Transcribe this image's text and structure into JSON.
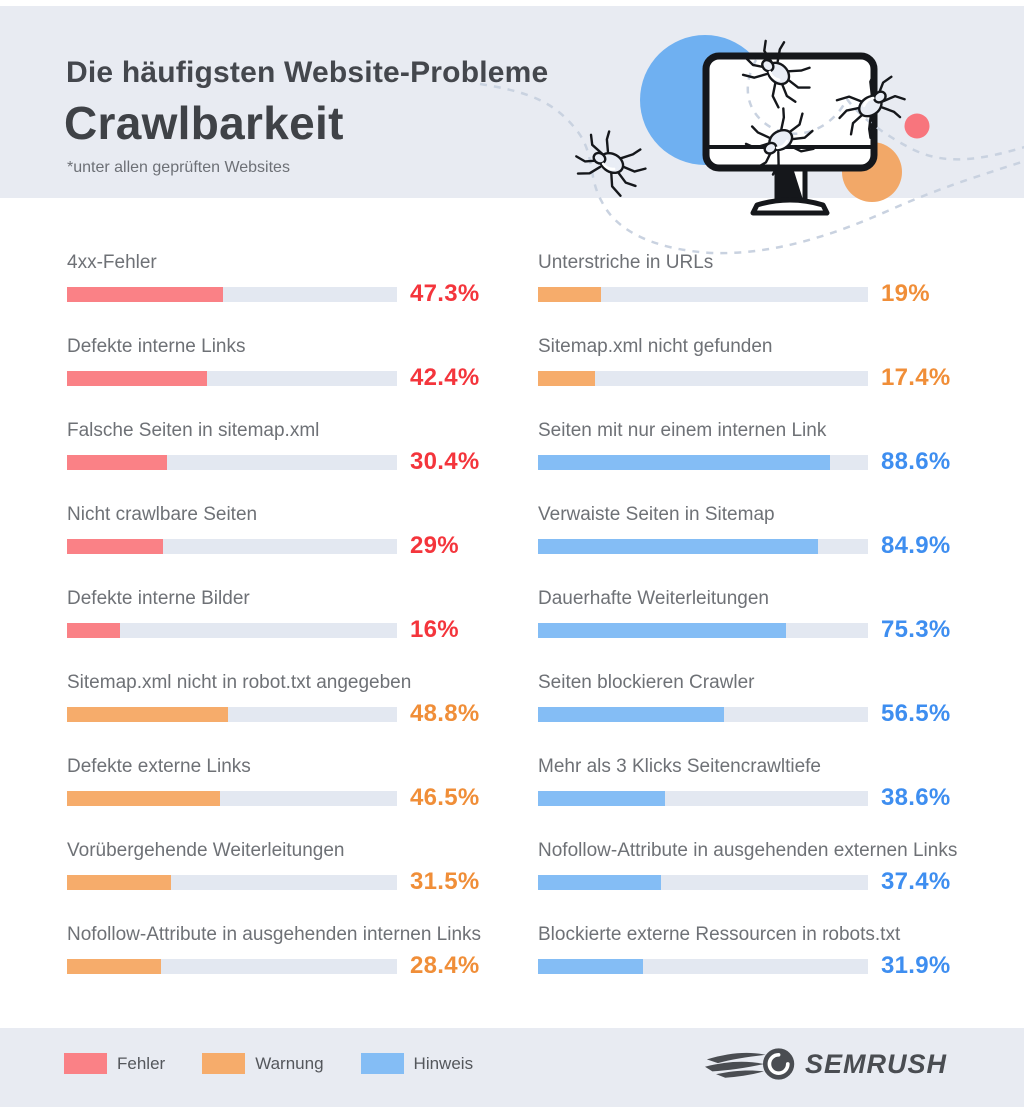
{
  "header": {
    "title_line1": "Die häufigsten Website-Probleme",
    "title_line2": "Crawlbarkeit",
    "subtitle": "*unter allen geprüften Websites"
  },
  "chart_data": {
    "type": "bar",
    "orientation": "horizontal",
    "unit": "%",
    "axis_max": 100,
    "track_color": "#E3E8F1",
    "severity_styles": {
      "fehler": {
        "bar": "#FA8186",
        "value": "#F4353C"
      },
      "warnung": {
        "bar": "#F6AC6B",
        "value": "#F08E38"
      },
      "hinweis": {
        "bar": "#84BDF5",
        "value": "#3E8EF0"
      }
    },
    "columns": [
      {
        "items": [
          {
            "label": "4xx-Fehler",
            "value": 47.3,
            "display": "47.3%",
            "severity": "fehler"
          },
          {
            "label": "Defekte interne Links",
            "value": 42.4,
            "display": "42.4%",
            "severity": "fehler"
          },
          {
            "label": "Falsche Seiten in sitemap.xml",
            "value": 30.4,
            "display": "30.4%",
            "severity": "fehler"
          },
          {
            "label": "Nicht crawlbare Seiten",
            "value": 29,
            "display": "29%",
            "severity": "fehler"
          },
          {
            "label": "Defekte interne Bilder",
            "value": 16,
            "display": "16%",
            "severity": "fehler"
          },
          {
            "label": "Sitemap.xml nicht in robot.txt angegeben",
            "value": 48.8,
            "display": "48.8%",
            "severity": "warnung"
          },
          {
            "label": "Defekte externe Links",
            "value": 46.5,
            "display": "46.5%",
            "severity": "warnung"
          },
          {
            "label": "Vorübergehende Weiterleitungen",
            "value": 31.5,
            "display": "31.5%",
            "severity": "warnung"
          },
          {
            "label": "Nofollow-Attribute in ausgehenden internen Links",
            "value": 28.4,
            "display": "28.4%",
            "severity": "warnung"
          }
        ]
      },
      {
        "items": [
          {
            "label": "Unterstriche in URLs",
            "value": 19,
            "display": "19%",
            "severity": "warnung"
          },
          {
            "label": "Sitemap.xml nicht gefunden",
            "value": 17.4,
            "display": "17.4%",
            "severity": "warnung"
          },
          {
            "label": "Seiten mit nur einem internen Link",
            "value": 88.6,
            "display": "88.6%",
            "severity": "hinweis"
          },
          {
            "label": "Verwaiste Seiten in Sitemap",
            "value": 84.9,
            "display": "84.9%",
            "severity": "hinweis"
          },
          {
            "label": "Dauerhafte Weiterleitungen",
            "value": 75.3,
            "display": "75.3%",
            "severity": "hinweis"
          },
          {
            "label": "Seiten blockieren Crawler",
            "value": 56.5,
            "display": "56.5%",
            "severity": "hinweis"
          },
          {
            "label": "Mehr als 3 Klicks Seitencrawltiefe",
            "value": 38.6,
            "display": "38.6%",
            "severity": "hinweis"
          },
          {
            "label": "Nofollow-Attribute in ausgehenden externen Links",
            "value": 37.4,
            "display": "37.4%",
            "severity": "hinweis"
          },
          {
            "label": "Blockierte externe Ressourcen in robots.txt",
            "value": 31.9,
            "display": "31.9%",
            "severity": "hinweis"
          }
        ]
      }
    ],
    "legend": [
      {
        "key": "fehler",
        "label": "Fehler"
      },
      {
        "key": "warnung",
        "label": "Warnung"
      },
      {
        "key": "hinweis",
        "label": "Hinweis"
      }
    ]
  },
  "footer": {
    "brand": "SEMRUSH"
  }
}
